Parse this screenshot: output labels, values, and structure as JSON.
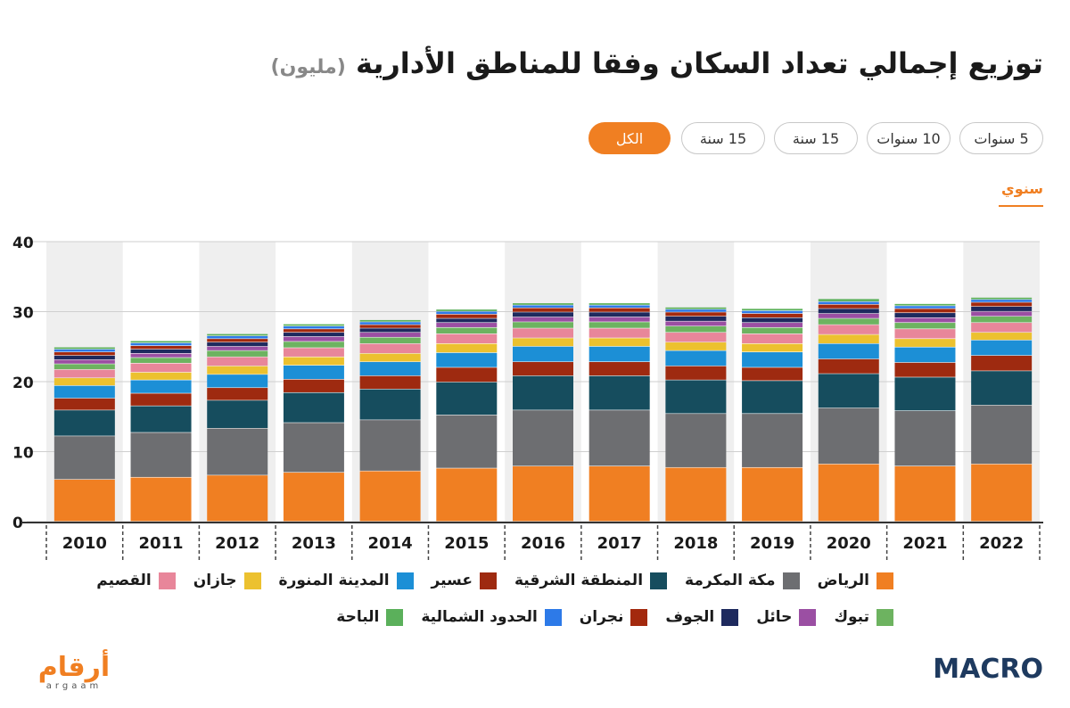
{
  "header": {
    "title": "توزيع إجمالي تعداد السكان وفقا للمناطق الأدارية",
    "unit": "(مليون)"
  },
  "tabs": [
    {
      "label": "5 سنوات",
      "active": false
    },
    {
      "label": "10 سنوات",
      "active": false
    },
    {
      "label": "15 سنة",
      "active": false
    },
    {
      "label": "15 سنة",
      "active": false
    },
    {
      "label": "الكل",
      "active": true
    }
  ],
  "frequency_label": "سنوي",
  "branding": {
    "left_logo": "أرقام",
    "left_logo_sub": "argaam",
    "right_logo": "MACRO"
  },
  "colors": {
    "accent": "#f07f22",
    "brand_dark": "#1e3a5f"
  },
  "chart_data": {
    "type": "bar",
    "stacked": true,
    "ylim": [
      0,
      40
    ],
    "yticks": [
      0,
      10,
      20,
      30,
      40
    ],
    "grid": true,
    "categories": [
      "2010",
      "2011",
      "2012",
      "2013",
      "2014",
      "2015",
      "2016",
      "2017",
      "2018",
      "2019",
      "2020",
      "2021",
      "2022"
    ],
    "series": [
      {
        "name": "الرياض",
        "color": "#f07f22",
        "values": [
          6.0,
          6.3,
          6.6,
          7.0,
          7.2,
          7.6,
          7.9,
          7.9,
          7.7,
          7.7,
          8.2,
          7.9,
          8.2
        ]
      },
      {
        "name": "مكة المكرمة",
        "color": "#6d6e71",
        "values": [
          6.2,
          6.4,
          6.7,
          7.1,
          7.3,
          7.6,
          8.0,
          8.0,
          7.7,
          7.7,
          8.0,
          7.9,
          8.4
        ]
      },
      {
        "name": "المنطقة الشرقية",
        "color": "#164d5e",
        "values": [
          3.7,
          3.8,
          4.0,
          4.3,
          4.4,
          4.7,
          4.9,
          4.9,
          4.8,
          4.7,
          4.9,
          4.8,
          4.9
        ]
      },
      {
        "name": "عسير",
        "color": "#9e2a10",
        "values": [
          1.7,
          1.8,
          1.8,
          1.9,
          1.9,
          2.1,
          2.0,
          2.0,
          2.0,
          1.9,
          2.1,
          2.1,
          2.2
        ]
      },
      {
        "name": "المدينة المنورة",
        "color": "#1c8fd6",
        "values": [
          1.8,
          1.9,
          1.9,
          2.0,
          2.0,
          2.1,
          2.2,
          2.2,
          2.2,
          2.2,
          2.2,
          2.2,
          2.2
        ]
      },
      {
        "name": "جازان",
        "color": "#ecc12f",
        "values": [
          1.1,
          1.1,
          1.2,
          1.2,
          1.2,
          1.3,
          1.2,
          1.2,
          1.2,
          1.2,
          1.3,
          1.2,
          1.1
        ]
      },
      {
        "name": "القصيم",
        "color": "#e8869a",
        "values": [
          1.2,
          1.3,
          1.3,
          1.3,
          1.4,
          1.4,
          1.4,
          1.4,
          1.4,
          1.4,
          1.4,
          1.4,
          1.4
        ]
      },
      {
        "name": "تبوك",
        "color": "#6db360",
        "values": [
          0.8,
          0.8,
          0.9,
          0.9,
          0.9,
          0.9,
          0.9,
          0.9,
          0.9,
          0.9,
          0.9,
          0.9,
          0.9
        ]
      },
      {
        "name": "حائل",
        "color": "#9b4fa3",
        "values": [
          0.6,
          0.6,
          0.6,
          0.7,
          0.7,
          0.7,
          0.7,
          0.7,
          0.7,
          0.7,
          0.7,
          0.7,
          0.7
        ]
      },
      {
        "name": "الجوف",
        "color": "#1e2a5e",
        "values": [
          0.6,
          0.6,
          0.6,
          0.6,
          0.6,
          0.6,
          0.7,
          0.7,
          0.7,
          0.7,
          0.7,
          0.7,
          0.7
        ]
      },
      {
        "name": "نجران",
        "color": "#a3290e",
        "values": [
          0.5,
          0.5,
          0.5,
          0.5,
          0.5,
          0.6,
          0.6,
          0.6,
          0.6,
          0.6,
          0.6,
          0.6,
          0.6
        ]
      },
      {
        "name": "الحدود الشمالية",
        "color": "#2d7ae8",
        "values": [
          0.4,
          0.4,
          0.4,
          0.4,
          0.4,
          0.4,
          0.4,
          0.4,
          0.4,
          0.4,
          0.4,
          0.4,
          0.4
        ]
      },
      {
        "name": "الباحة",
        "color": "#5bb05b",
        "values": [
          0.3,
          0.3,
          0.3,
          0.3,
          0.3,
          0.3,
          0.3,
          0.3,
          0.3,
          0.3,
          0.4,
          0.3,
          0.3
        ]
      }
    ]
  }
}
